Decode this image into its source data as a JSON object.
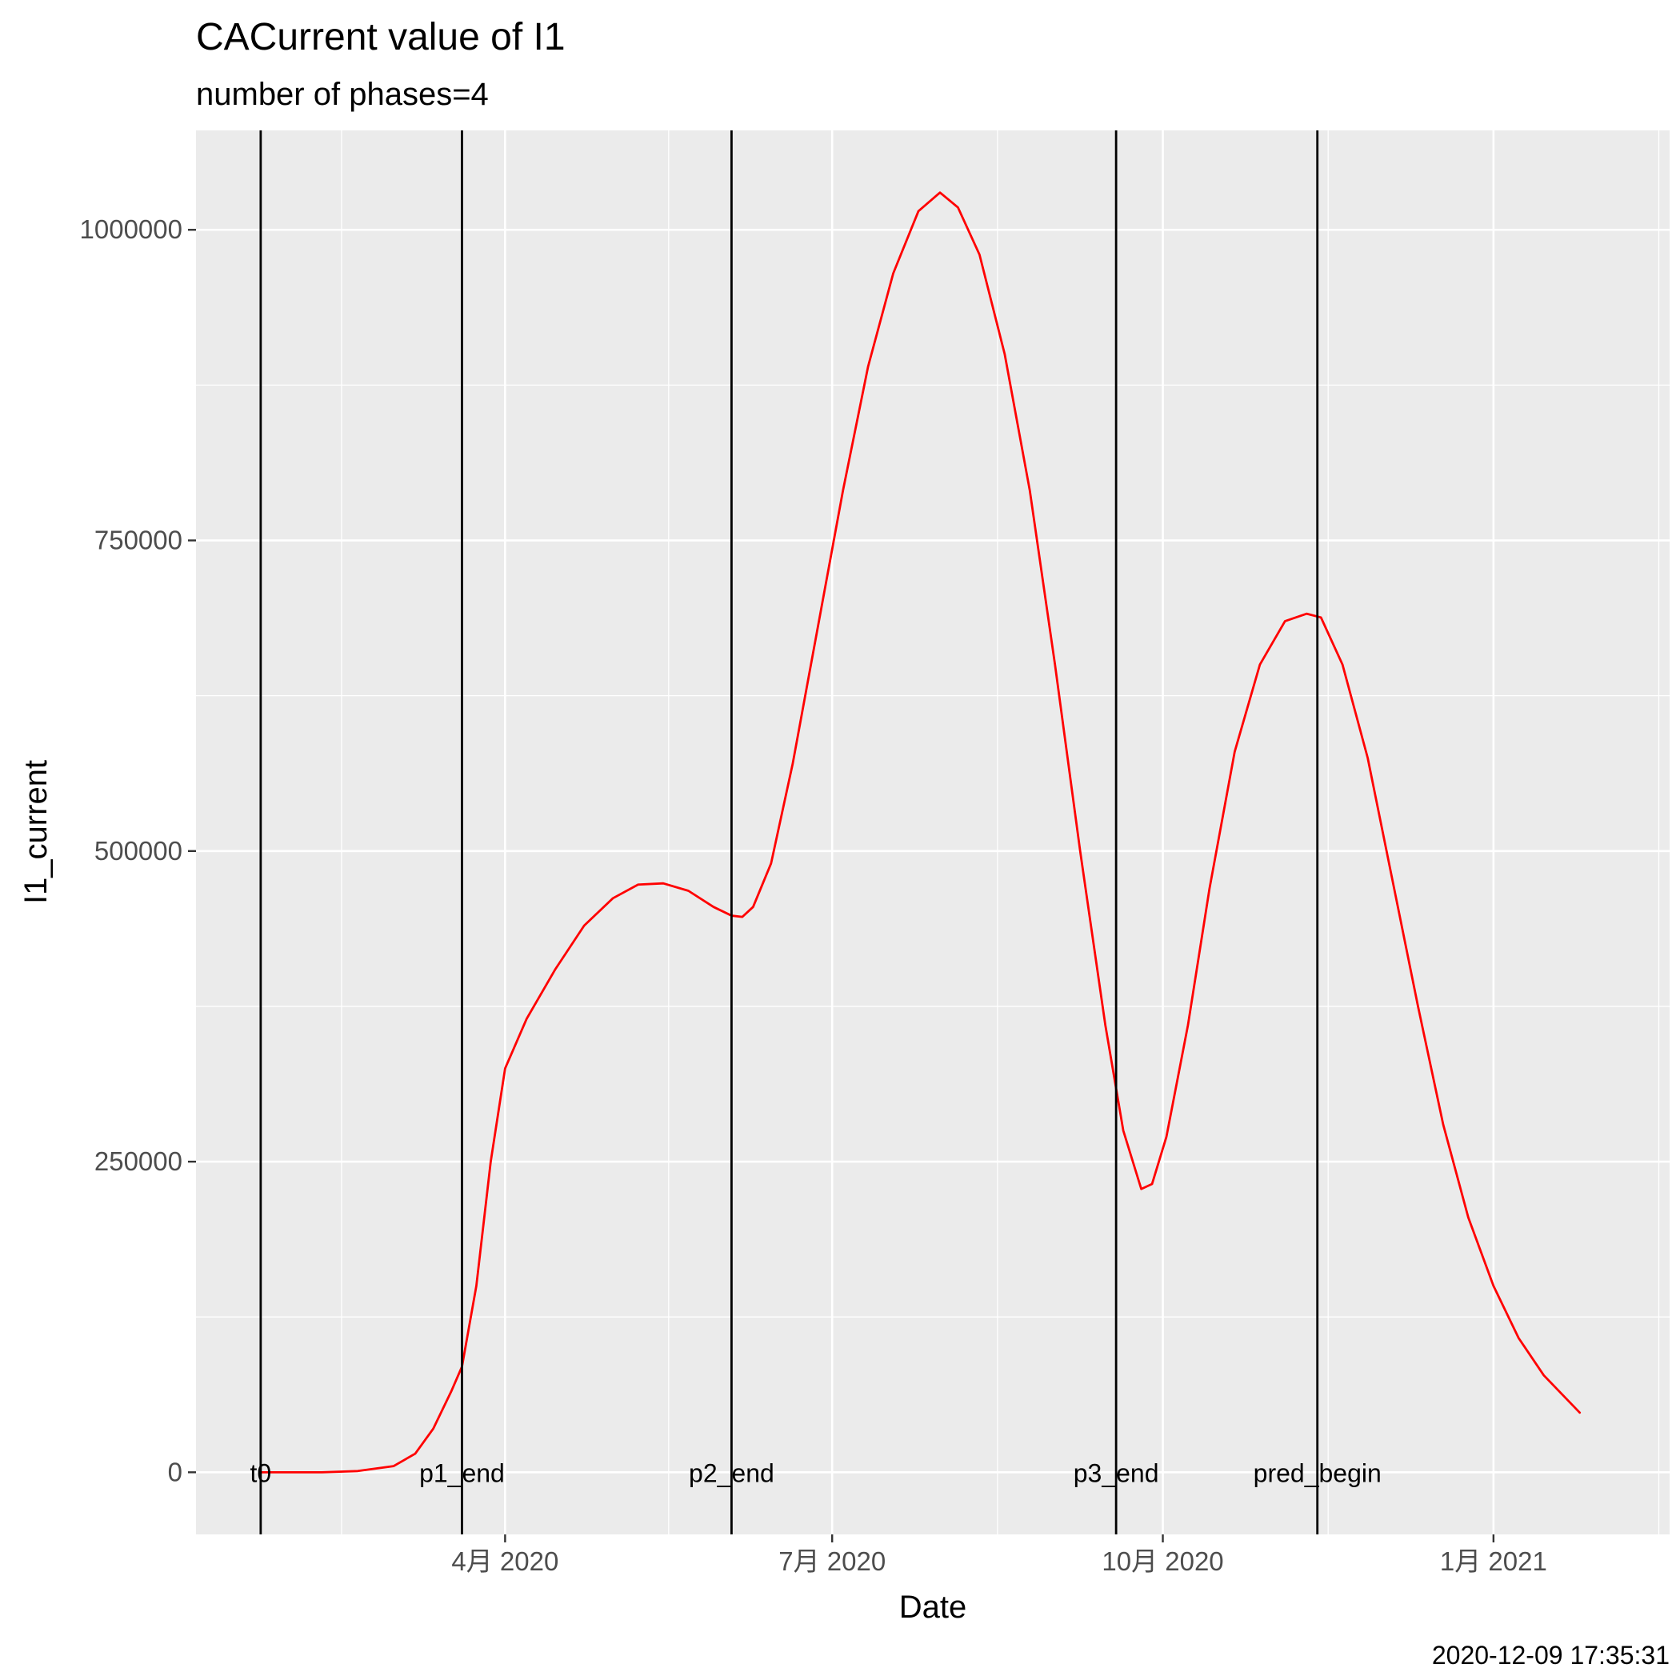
{
  "chart_data": {
    "type": "line",
    "title": "CACurrent value of I1",
    "subtitle": "number of phases=4",
    "xlabel": "Date",
    "ylabel": "I1_current",
    "caption": "2020-12-09 17:35:31",
    "xlim": [
      "2020-01-06",
      "2021-02-19"
    ],
    "ylim": [
      -50000,
      1080000
    ],
    "grid": true,
    "x_ticks": [
      {
        "date": "2020-04-01",
        "label": "4月 2020"
      },
      {
        "date": "2020-07-01",
        "label": "7月 2020"
      },
      {
        "date": "2020-10-01",
        "label": "10月 2020"
      },
      {
        "date": "2021-01-01",
        "label": "1月 2021"
      }
    ],
    "y_ticks": [
      {
        "value": 0,
        "label": "0"
      },
      {
        "value": 250000,
        "label": "250000"
      },
      {
        "value": 500000,
        "label": "500000"
      },
      {
        "value": 750000,
        "label": "750000"
      },
      {
        "value": 1000000,
        "label": "1000000"
      }
    ],
    "vlines": [
      {
        "date": "2020-01-24",
        "label": "t0"
      },
      {
        "date": "2020-03-20",
        "label": "p1_end"
      },
      {
        "date": "2020-06-03",
        "label": "p2_end"
      },
      {
        "date": "2020-09-18",
        "label": "p3_end"
      },
      {
        "date": "2020-11-13",
        "label": "pred_begin"
      }
    ],
    "series": [
      {
        "color": "#ff0000",
        "points": [
          [
            "2020-01-24",
            0
          ],
          [
            "2020-02-10",
            0
          ],
          [
            "2020-02-20",
            1000
          ],
          [
            "2020-03-01",
            5000
          ],
          [
            "2020-03-07",
            15000
          ],
          [
            "2020-03-12",
            35000
          ],
          [
            "2020-03-17",
            65000
          ],
          [
            "2020-03-20",
            85000
          ],
          [
            "2020-03-24",
            150000
          ],
          [
            "2020-03-28",
            250000
          ],
          [
            "2020-04-01",
            325000
          ],
          [
            "2020-04-07",
            365000
          ],
          [
            "2020-04-15",
            405000
          ],
          [
            "2020-04-23",
            440000
          ],
          [
            "2020-05-01",
            462000
          ],
          [
            "2020-05-08",
            473000
          ],
          [
            "2020-05-15",
            474000
          ],
          [
            "2020-05-22",
            468000
          ],
          [
            "2020-05-29",
            455000
          ],
          [
            "2020-06-03",
            448000
          ],
          [
            "2020-06-06",
            447000
          ],
          [
            "2020-06-09",
            455000
          ],
          [
            "2020-06-14",
            490000
          ],
          [
            "2020-06-20",
            570000
          ],
          [
            "2020-06-27",
            680000
          ],
          [
            "2020-07-04",
            790000
          ],
          [
            "2020-07-11",
            890000
          ],
          [
            "2020-07-18",
            965000
          ],
          [
            "2020-07-25",
            1015000
          ],
          [
            "2020-07-31",
            1030000
          ],
          [
            "2020-08-05",
            1018000
          ],
          [
            "2020-08-11",
            980000
          ],
          [
            "2020-08-18",
            900000
          ],
          [
            "2020-08-25",
            790000
          ],
          [
            "2020-09-01",
            650000
          ],
          [
            "2020-09-08",
            500000
          ],
          [
            "2020-09-15",
            360000
          ],
          [
            "2020-09-20",
            275000
          ],
          [
            "2020-09-25",
            228000
          ],
          [
            "2020-09-28",
            232000
          ],
          [
            "2020-10-02",
            270000
          ],
          [
            "2020-10-08",
            360000
          ],
          [
            "2020-10-14",
            470000
          ],
          [
            "2020-10-21",
            580000
          ],
          [
            "2020-10-28",
            650000
          ],
          [
            "2020-11-04",
            685000
          ],
          [
            "2020-11-10",
            691000
          ],
          [
            "2020-11-14",
            688000
          ],
          [
            "2020-11-20",
            650000
          ],
          [
            "2020-11-27",
            575000
          ],
          [
            "2020-12-04",
            475000
          ],
          [
            "2020-12-11",
            375000
          ],
          [
            "2020-12-18",
            280000
          ],
          [
            "2020-12-25",
            205000
          ],
          [
            "2021-01-01",
            150000
          ],
          [
            "2021-01-08",
            108000
          ],
          [
            "2021-01-15",
            78000
          ],
          [
            "2021-01-25",
            48000
          ]
        ]
      }
    ]
  }
}
